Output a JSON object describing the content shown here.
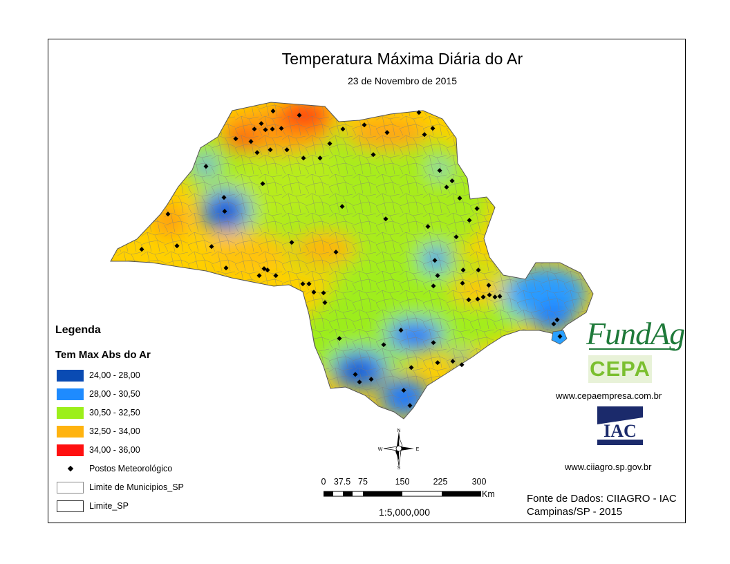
{
  "title": "Temperatura Máxima Diária do Ar",
  "subtitle": "23 de Novembro de 2015",
  "legend": {
    "heading": "Legenda",
    "layer_title": "Tem Max Abs do Ar",
    "classes": [
      {
        "label": "24,00 - 28,00",
        "color": "#0a4bb3"
      },
      {
        "label": "28,00 - 30,50",
        "color": "#1e8bff"
      },
      {
        "label": "30,50 - 32,50",
        "color": "#9cef1a"
      },
      {
        "label": "32,50 - 34,00",
        "color": "#ffb30f"
      },
      {
        "label": "34,00 - 36,00",
        "color": "#ff1010"
      }
    ],
    "stations_label": "Postos Meteorológico",
    "municipios_label": "Limite de Municipios_SP",
    "state_label": "Limite_SP"
  },
  "north_arrow": {
    "n": "N",
    "s": "S",
    "e": "E",
    "w": "W"
  },
  "scale_bar": {
    "ticks": [
      "0",
      "37.5",
      "75",
      "150",
      "225",
      "300"
    ],
    "unit": "Km",
    "ratio": "1:5,000,000"
  },
  "logos": {
    "fundag": "FundAg",
    "cepa": "CEPA",
    "cepa_url": "www.cepaempresa.com.br",
    "iac": "IAC",
    "ciiagro_url": "www.ciiagro.sp.gov.br"
  },
  "source": {
    "line1": "Fonte de Dados: CIIAGRO - IAC",
    "line2": "Campinas/SP - 2015"
  }
}
